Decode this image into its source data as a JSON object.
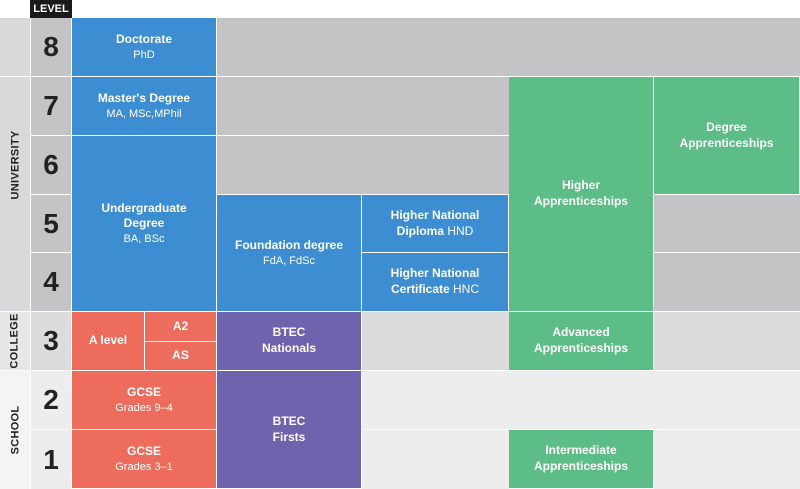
{
  "header": {
    "level_label": "LEVEL"
  },
  "sections": {
    "university": "UNIVERSITY",
    "college": "COLLEGE",
    "school": "SCHOOL"
  },
  "levels": [
    "8",
    "7",
    "6",
    "5",
    "4",
    "3",
    "2",
    "1"
  ],
  "colors": {
    "blue": "#3c8dd1",
    "red": "#ee6c5b",
    "purple": "#6f63ad",
    "green": "#5dbd86"
  },
  "cells": {
    "doctorate": {
      "title": "Doctorate",
      "sub": "PhD"
    },
    "masters": {
      "title": "Master's Degree",
      "sub": "MA, MSc,MPhil"
    },
    "undergrad": {
      "title1": "Undergraduate",
      "title2": "Degree",
      "sub": "BA, BSc"
    },
    "foundation": {
      "title": "Foundation degree",
      "sub": "FdA, FdSc"
    },
    "hnd": {
      "title1": "Higher National",
      "title2": "Diploma",
      "abbr": "HND"
    },
    "hnc": {
      "title1": "Higher National",
      "title2": "Certificate",
      "abbr": "HNC"
    },
    "higher_app": {
      "title1": "Higher",
      "title2": "Apprenticeships"
    },
    "degree_app": {
      "title1": "Degree",
      "title2": "Apprenticeships"
    },
    "a_level": {
      "title": "A level",
      "a2": "A2",
      "as": "AS"
    },
    "btec_nationals": {
      "title1": "BTEC",
      "title2": "Nationals"
    },
    "advanced_app": {
      "title1": "Advanced",
      "title2": "Apprenticeships"
    },
    "gcse_9_4": {
      "title": "GCSE",
      "sub": "Grades 9–4"
    },
    "gcse_3_1": {
      "title": "GCSE",
      "sub": "Grades 3–1"
    },
    "btec_firsts": {
      "title1": "BTEC",
      "title2": "Firsts"
    },
    "intermediate_app": {
      "title1": "Intermediate",
      "title2": "Apprenticeships"
    }
  }
}
